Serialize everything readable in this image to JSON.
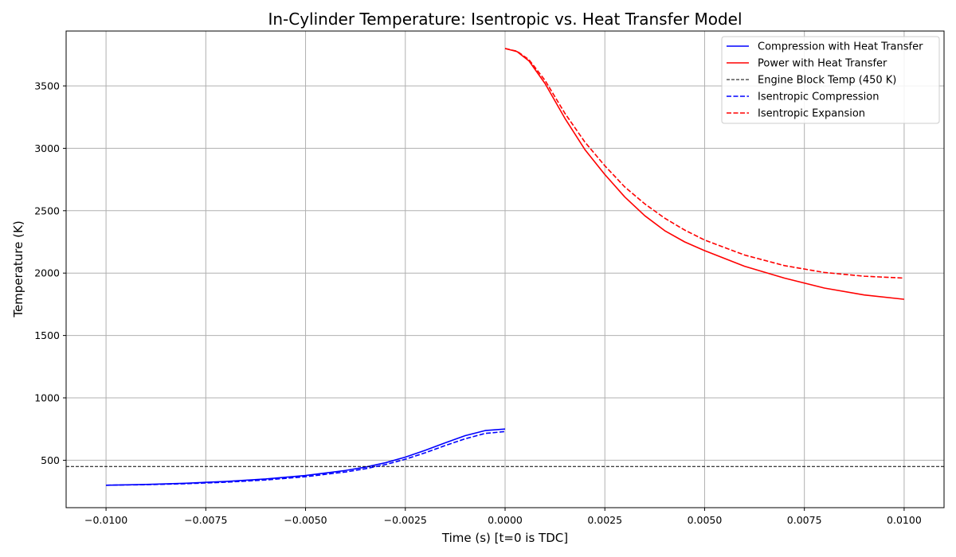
{
  "chart_data": {
    "type": "line",
    "title": "In-Cylinder Temperature: Isentropic vs. Heat Transfer Model",
    "xlabel": "Time (s) [t=0 is TDC]",
    "ylabel": "Temperature (K)",
    "xlim": [
      -0.011,
      0.011
    ],
    "ylim": [
      120,
      3940
    ],
    "grid": true,
    "legend_position": "top-right",
    "x_ticks": [
      -0.01,
      -0.0075,
      -0.005,
      -0.0025,
      0.0,
      0.0025,
      0.005,
      0.0075,
      0.01
    ],
    "x_tick_labels": [
      "−0.0100",
      "−0.0075",
      "−0.0050",
      "−0.0025",
      "0.0000",
      "0.0025",
      "0.0050",
      "0.0075",
      "0.0100"
    ],
    "y_ticks": [
      500,
      1000,
      1500,
      2000,
      2500,
      3000,
      3500
    ],
    "y_tick_labels": [
      "500",
      "1000",
      "1500",
      "2000",
      "2500",
      "3000",
      "3500"
    ],
    "series": [
      {
        "name": "Compression with Heat Transfer",
        "color": "#0000ff",
        "style": "solid",
        "x": [
          -0.01,
          -0.009,
          -0.008,
          -0.007,
          -0.006,
          -0.005,
          -0.004,
          -0.0035,
          -0.003,
          -0.0025,
          -0.002,
          -0.0015,
          -0.001,
          -0.0005,
          0.0
        ],
        "y": [
          300,
          306,
          316,
          330,
          350,
          378,
          418,
          445,
          480,
          525,
          580,
          640,
          697,
          738,
          750
        ]
      },
      {
        "name": "Power with Heat Transfer",
        "color": "#ff0000",
        "style": "solid",
        "x": [
          0.0,
          0.0003,
          0.0006,
          0.001,
          0.0015,
          0.002,
          0.0025,
          0.003,
          0.0035,
          0.004,
          0.0045,
          0.005,
          0.006,
          0.007,
          0.008,
          0.009,
          0.01
        ],
        "y": [
          3800,
          3775,
          3700,
          3520,
          3240,
          2990,
          2790,
          2610,
          2460,
          2340,
          2250,
          2180,
          2055,
          1960,
          1880,
          1825,
          1790
        ]
      },
      {
        "name": "Engine Block Temp (450 K)",
        "color": "#000000",
        "style": "dashed-thin",
        "x": [
          -0.011,
          0.011
        ],
        "y": [
          450,
          450
        ]
      },
      {
        "name": "Isentropic Compression",
        "color": "#0000ff",
        "style": "dashed",
        "x": [
          -0.01,
          -0.009,
          -0.008,
          -0.007,
          -0.006,
          -0.005,
          -0.004,
          -0.0035,
          -0.003,
          -0.0025,
          -0.002,
          -0.0015,
          -0.001,
          -0.0005,
          0.0
        ],
        "y": [
          300,
          304,
          312,
          324,
          342,
          368,
          406,
          432,
          465,
          508,
          560,
          618,
          672,
          715,
          730
        ]
      },
      {
        "name": "Isentropic Expansion",
        "color": "#ff0000",
        "style": "dashed",
        "x": [
          0.0,
          0.0003,
          0.0006,
          0.001,
          0.0015,
          0.002,
          0.0025,
          0.003,
          0.0035,
          0.004,
          0.0045,
          0.005,
          0.006,
          0.007,
          0.008,
          0.009,
          0.01
        ],
        "y": [
          3800,
          3778,
          3710,
          3545,
          3280,
          3050,
          2860,
          2690,
          2555,
          2440,
          2345,
          2265,
          2145,
          2060,
          2005,
          1975,
          1960
        ]
      }
    ]
  }
}
